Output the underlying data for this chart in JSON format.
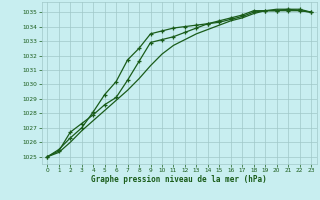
{
  "title": "Graphe pression niveau de la mer (hPa)",
  "bg_color": "#c8eef0",
  "line_color": "#1a5c1a",
  "grid_color": "#a0c8c8",
  "x_min": 0,
  "x_max": 23,
  "y_min": 1024.5,
  "y_max": 1035.7,
  "y_ticks": [
    1025,
    1026,
    1027,
    1028,
    1029,
    1030,
    1031,
    1032,
    1033,
    1034,
    1035
  ],
  "x_ticks": [
    0,
    1,
    2,
    3,
    4,
    5,
    6,
    7,
    8,
    9,
    10,
    11,
    12,
    13,
    14,
    15,
    16,
    17,
    18,
    19,
    20,
    21,
    22,
    23
  ],
  "series1": [
    1025.0,
    1025.5,
    1026.3,
    1027.0,
    1028.1,
    1029.3,
    1030.2,
    1031.7,
    1032.5,
    1033.5,
    1033.7,
    1033.9,
    1034.0,
    1034.1,
    1034.2,
    1034.3,
    1034.5,
    1034.7,
    1035.0,
    1035.1,
    1035.1,
    1035.1,
    1035.1,
    1035.0
  ],
  "series2": [
    1025.0,
    1025.4,
    1026.7,
    1027.3,
    1027.9,
    1028.6,
    1029.1,
    1030.3,
    1031.6,
    1032.9,
    1033.1,
    1033.3,
    1033.6,
    1033.9,
    1034.2,
    1034.4,
    1034.6,
    1034.8,
    1035.1,
    1035.1,
    1035.1,
    1035.2,
    1035.2,
    1035.0
  ],
  "series3": [
    1025.0,
    1025.3,
    1026.0,
    1026.8,
    1027.5,
    1028.2,
    1028.9,
    1029.6,
    1030.4,
    1031.3,
    1032.1,
    1032.7,
    1033.1,
    1033.5,
    1033.8,
    1034.1,
    1034.4,
    1034.6,
    1034.9,
    1035.1,
    1035.2,
    1035.2,
    1035.1,
    1035.0
  ]
}
